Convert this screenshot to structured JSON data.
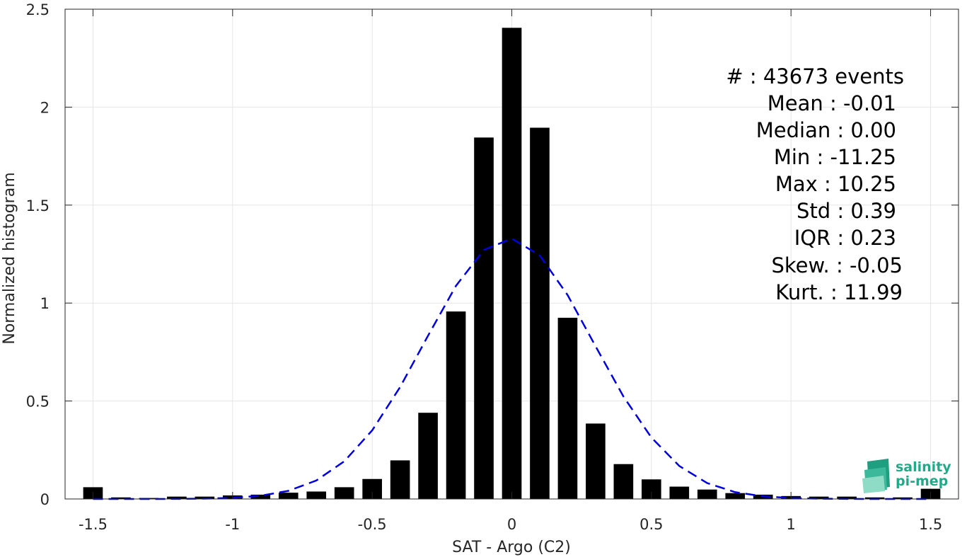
{
  "chart_data": {
    "type": "bar",
    "xlabel": "SAT - Argo (C2)",
    "ylabel": "Normalized histogram",
    "xlim": [
      -1.6,
      1.6
    ],
    "ylim": [
      0,
      2.5
    ],
    "xticks": [
      -1.5,
      -1,
      -0.5,
      0,
      0.5,
      1,
      1.5
    ],
    "xtick_labels": [
      "-1.5",
      "-1",
      "-0.5",
      "0",
      "0.5",
      "1",
      "1.5"
    ],
    "yticks": [
      0,
      0.5,
      1,
      1.5,
      2,
      2.5
    ],
    "ytick_labels": [
      "0",
      "0.5",
      "1",
      "1.5",
      "2",
      "2.5"
    ],
    "grid": true,
    "bin_width": 0.1,
    "bars": {
      "x": [
        -1.5,
        -1.4,
        -1.3,
        -1.2,
        -1.1,
        -1.0,
        -0.9,
        -0.8,
        -0.7,
        -0.6,
        -0.5,
        -0.4,
        -0.3,
        -0.2,
        -0.1,
        0.0,
        0.1,
        0.2,
        0.3,
        0.4,
        0.5,
        0.6,
        0.7,
        0.8,
        0.9,
        1.0,
        1.1,
        1.2,
        1.3,
        1.4,
        1.5
      ],
      "y": [
        0.06,
        0.008,
        0.005,
        0.012,
        0.012,
        0.018,
        0.022,
        0.032,
        0.038,
        0.06,
        0.102,
        0.197,
        0.44,
        0.957,
        1.845,
        2.405,
        1.895,
        0.925,
        0.385,
        0.178,
        0.1,
        0.063,
        0.048,
        0.03,
        0.022,
        0.015,
        0.012,
        0.012,
        0.008,
        0.008,
        0.052
      ]
    },
    "fit_curve": {
      "style": "dashed",
      "color": "#0000dd",
      "mean": -0.01,
      "std": 0.3
    },
    "stats": [
      "#  : 43673 events",
      "Mean : -0.01",
      "Median : 0.00",
      "Min : -11.25",
      "Max : 10.25",
      "Std : 0.39",
      "IQR : 0.23",
      "Skew. : -0.05",
      "Kurt. : 11.99"
    ]
  },
  "logo": {
    "line1": "salinity",
    "line2": "pi-mep"
  }
}
